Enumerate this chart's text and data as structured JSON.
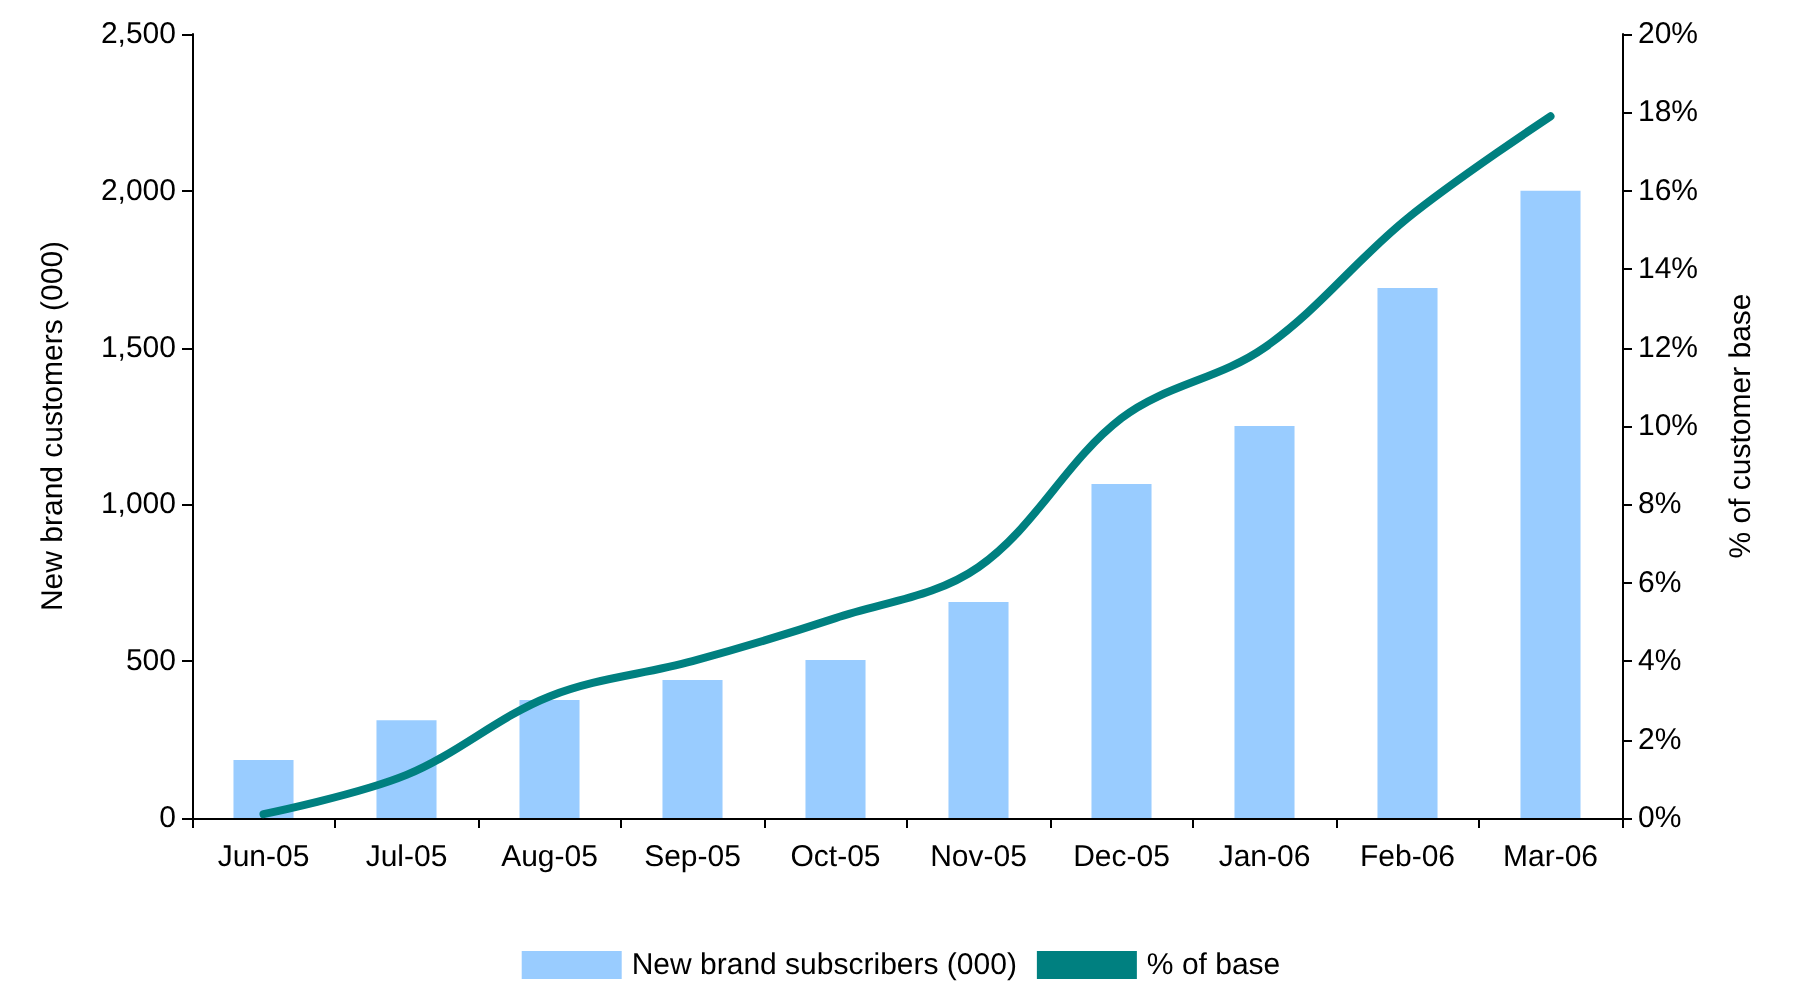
{
  "chart_data": {
    "type": "bar",
    "ylabel": "New brand customers (000)",
    "y2label": "% of customer base",
    "categories": [
      "Jun-05",
      "Jul-05",
      "Aug-05",
      "Sep-05",
      "Oct-05",
      "Nov-05",
      "Dec-05",
      "Jan-06",
      "Feb-06",
      "Mar-06"
    ],
    "series": [
      {
        "name": "New brand subscribers (000)",
        "color": "#99ccff",
        "values": [
          185,
          312,
          376,
          440,
          504,
          689,
          1065,
          1250,
          1690,
          2000
        ]
      },
      {
        "name": "% of base",
        "type": "line",
        "axis": "y2",
        "color": "#008080",
        "marker": "none",
        "line_style": "solid",
        "values": [
          0.1,
          1.1,
          3.1,
          4.0,
          5.1,
          6.4,
          10.2,
          12.0,
          15.3,
          17.9
        ]
      }
    ],
    "ylim": [
      0,
      2500
    ],
    "yticks": [
      {
        "value": 0,
        "label": "0"
      },
      {
        "value": 500,
        "label": "500"
      },
      {
        "value": 1000,
        "label": "1,000"
      },
      {
        "value": 1500,
        "label": "1,500"
      },
      {
        "value": 2000,
        "label": "2,000"
      },
      {
        "value": 2500,
        "label": "2,500"
      }
    ],
    "y2lim": [
      0,
      20
    ],
    "y2ticks": [
      {
        "value": 0,
        "label": "0%"
      },
      {
        "value": 2,
        "label": "2%"
      },
      {
        "value": 4,
        "label": "4%"
      },
      {
        "value": 6,
        "label": "6%"
      },
      {
        "value": 8,
        "label": "8%"
      },
      {
        "value": 10,
        "label": "10%"
      },
      {
        "value": 12,
        "label": "12%"
      },
      {
        "value": 14,
        "label": "14%"
      },
      {
        "value": 16,
        "label": "16%"
      },
      {
        "value": 18,
        "label": "18%"
      },
      {
        "value": 20,
        "label": "20%"
      }
    ],
    "grid": false,
    "legend": "bottom"
  }
}
